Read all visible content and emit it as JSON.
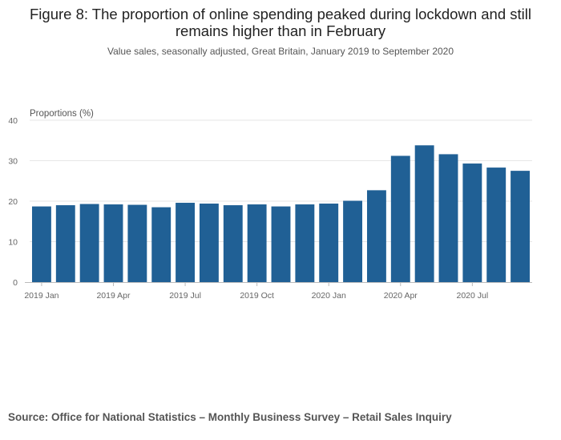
{
  "chart_data": {
    "type": "bar",
    "title": "Figure 8: The proportion of online spending peaked during lockdown and still remains higher than in February",
    "subtitle": "Value sales, seasonally adjusted, Great Britain, January 2019 to September 2020",
    "ylabel": "Proportions (%)",
    "xlabel": "",
    "ylim": [
      0,
      40
    ],
    "yticks": [
      0,
      10,
      20,
      30,
      40
    ],
    "grid": true,
    "color": "#206095",
    "categories": [
      "2019 Jan",
      "2019 Feb",
      "2019 Mar",
      "2019 Apr",
      "2019 May",
      "2019 Jun",
      "2019 Jul",
      "2019 Aug",
      "2019 Sep",
      "2019 Oct",
      "2019 Nov",
      "2019 Dec",
      "2020 Jan",
      "2020 Feb",
      "2020 Mar",
      "2020 Apr",
      "2020 May",
      "2020 Jun",
      "2020 Jul",
      "2020 Aug",
      "2020 Sep"
    ],
    "values": [
      18.7,
      19.0,
      19.3,
      19.2,
      19.1,
      18.5,
      19.6,
      19.4,
      19.0,
      19.2,
      18.7,
      19.2,
      19.4,
      20.1,
      22.7,
      31.2,
      33.8,
      31.6,
      29.3,
      28.3,
      27.5
    ],
    "xtick_labels": [
      {
        "index": 0,
        "label": "2019 Jan"
      },
      {
        "index": 3,
        "label": "2019 Apr"
      },
      {
        "index": 6,
        "label": "2019 Jul"
      },
      {
        "index": 9,
        "label": "2019 Oct"
      },
      {
        "index": 12,
        "label": "2020 Jan"
      },
      {
        "index": 15,
        "label": "2020 Apr"
      },
      {
        "index": 18,
        "label": "2020 Jul"
      }
    ]
  },
  "source": "Source: Office for National Statistics – Monthly Business Survey – Retail Sales Inquiry"
}
